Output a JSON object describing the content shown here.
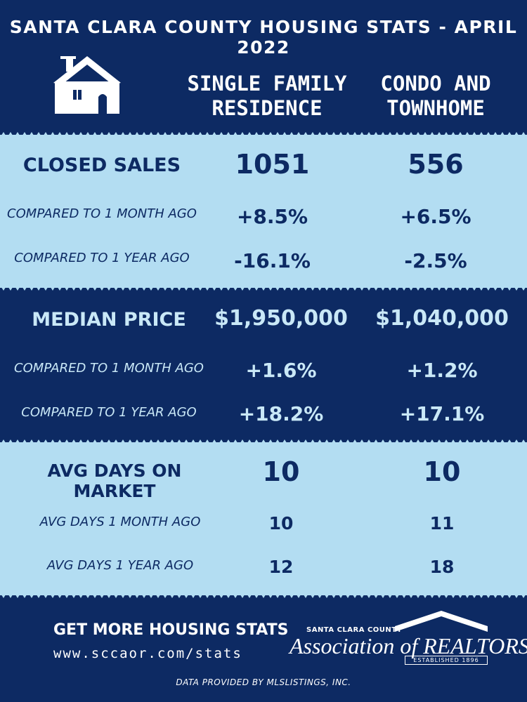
{
  "title": "SANTA CLARA COUNTY HOUSING STATS - APRIL 2022",
  "columns": {
    "sfr_line1": "SINGLE FAMILY",
    "sfr_line2": "RESIDENCE",
    "condo_line1": "CONDO AND",
    "condo_line2": "TOWNHOME"
  },
  "closed_sales": {
    "label": "CLOSED SALES",
    "sfr": "1051",
    "condo": "556",
    "month_label": "COMPARED TO 1 MONTH AGO",
    "sfr_month": "+8.5%",
    "condo_month": "+6.5%",
    "year_label": "COMPARED TO 1 YEAR AGO",
    "sfr_year": "-16.1%",
    "condo_year": "-2.5%"
  },
  "median_price": {
    "label": "MEDIAN PRICE",
    "sfr": "$1,950,000",
    "condo": "$1,040,000",
    "month_label": "COMPARED TO 1 MONTH AGO",
    "sfr_month": "+1.6%",
    "condo_month": "+1.2%",
    "year_label": "COMPARED TO 1 YEAR AGO",
    "sfr_year": "+18.2%",
    "condo_year": "+17.1%"
  },
  "days_on_market": {
    "label": "AVG DAYS ON MARKET",
    "sfr": "10",
    "condo": "10",
    "month_label": "AVG DAYS 1 MONTH AGO",
    "sfr_month": "10",
    "condo_month": "11",
    "year_label": "AVG DAYS 1 YEAR AGO",
    "sfr_year": "12",
    "condo_year": "18"
  },
  "footer": {
    "cta": "GET MORE HOUSING STATS",
    "url": "www.sccaor.com/stats",
    "logo_county": "SANTA CLARA COUNTY",
    "logo_assoc": "Association of REALTORS®",
    "logo_est": "ESTABLISHED 1896",
    "data_note": "DATA PROVIDED BY MLSLISTINGS, INC."
  },
  "icons": {
    "header_icon": "house-icon",
    "logo_icon": "roof-icon"
  },
  "colors": {
    "navy": "#0d2a63",
    "light_blue": "#b3ddf2",
    "white": "#ffffff"
  }
}
